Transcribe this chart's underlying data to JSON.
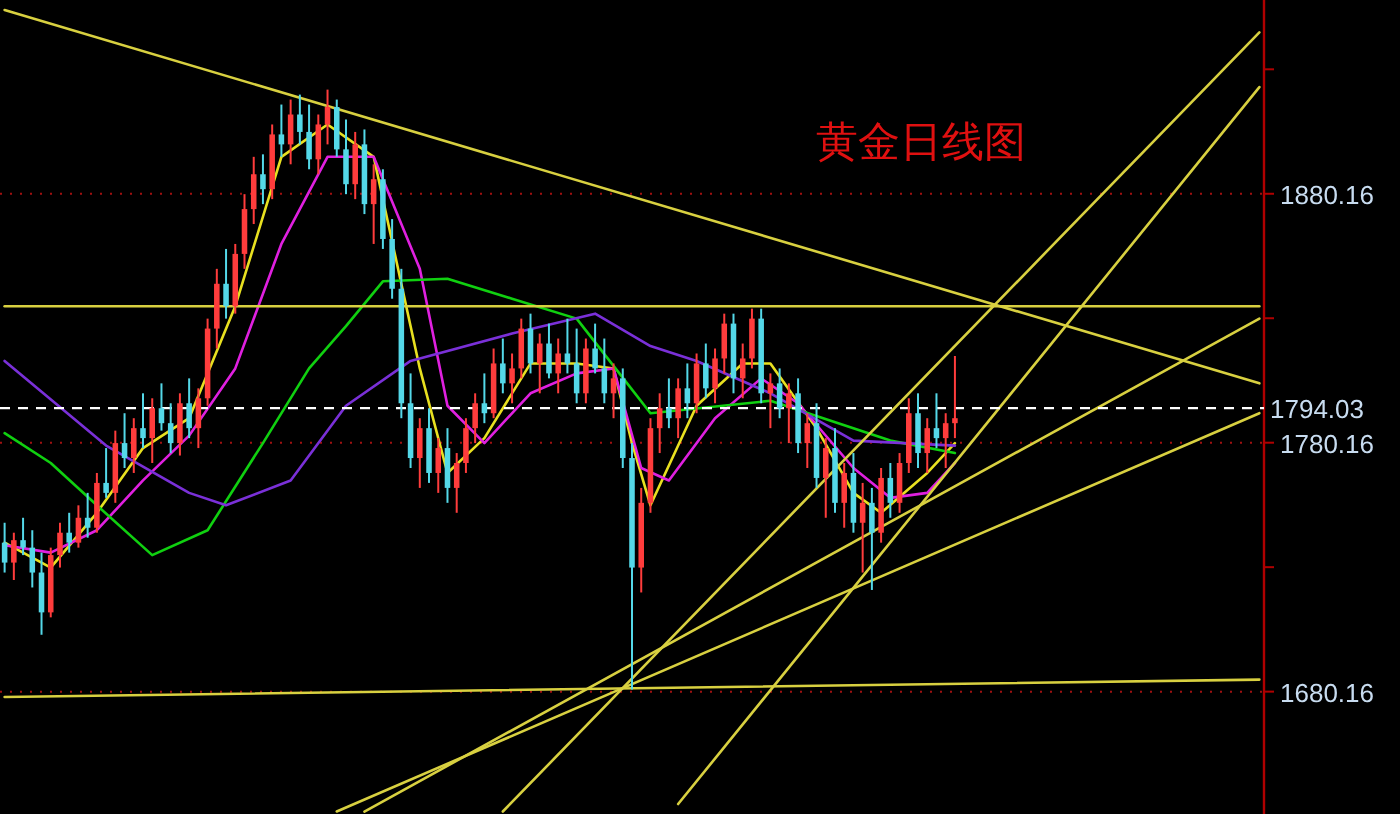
{
  "chart_data": {
    "type": "candlestick",
    "title": "黄金日线图",
    "categories": [
      null,
      null,
      null,
      null,
      null,
      null,
      null,
      null,
      null,
      null,
      null,
      null,
      null,
      null,
      null,
      null,
      null,
      null,
      null,
      null,
      null,
      null,
      null,
      null,
      null,
      null,
      null,
      null,
      null,
      null,
      null,
      null,
      null,
      null,
      null,
      null,
      null,
      null,
      null,
      null,
      null,
      null,
      null,
      null,
      null,
      null,
      null,
      null,
      null,
      null,
      null,
      null,
      null,
      null,
      null,
      null,
      null,
      null,
      null,
      null,
      null,
      null,
      null,
      null,
      null,
      null,
      null,
      null,
      null,
      null,
      null,
      null,
      null,
      null,
      null,
      null,
      null,
      null,
      null,
      null,
      null,
      null,
      null,
      null,
      null,
      null,
      null,
      null,
      null,
      null,
      null,
      null,
      null,
      null,
      null,
      null,
      null,
      null,
      null,
      null,
      null,
      null,
      null,
      null,
      null,
      null,
      null,
      null,
      null,
      null,
      null,
      null,
      null,
      null,
      null,
      null,
      null,
      null,
      null,
      null,
      null,
      null,
      null,
      null,
      null,
      null,
      null,
      null,
      null,
      null,
      null,
      null,
      null,
      null,
      null,
      null,
      null
    ],
    "ohlc": [
      [
        1740,
        1748,
        1728,
        1732
      ],
      [
        1732,
        1744,
        1725,
        1741
      ],
      [
        1741,
        1750,
        1735,
        1738
      ],
      [
        1738,
        1745,
        1722,
        1728
      ],
      [
        1728,
        1736,
        1703,
        1712
      ],
      [
        1712,
        1738,
        1710,
        1735
      ],
      [
        1735,
        1748,
        1730,
        1744
      ],
      [
        1744,
        1752,
        1736,
        1740
      ],
      [
        1740,
        1755,
        1738,
        1750
      ],
      [
        1750,
        1760,
        1742,
        1746
      ],
      [
        1746,
        1768,
        1744,
        1764
      ],
      [
        1764,
        1778,
        1758,
        1760
      ],
      [
        1760,
        1785,
        1756,
        1780
      ],
      [
        1780,
        1792,
        1770,
        1774
      ],
      [
        1774,
        1790,
        1768,
        1786
      ],
      [
        1786,
        1800,
        1778,
        1782
      ],
      [
        1782,
        1798,
        1772,
        1794
      ],
      [
        1794,
        1804,
        1785,
        1788
      ],
      [
        1788,
        1796,
        1776,
        1780
      ],
      [
        1780,
        1800,
        1775,
        1796
      ],
      [
        1796,
        1806,
        1782,
        1786
      ],
      [
        1786,
        1802,
        1778,
        1798
      ],
      [
        1798,
        1830,
        1795,
        1826
      ],
      [
        1826,
        1850,
        1818,
        1844
      ],
      [
        1844,
        1858,
        1830,
        1835
      ],
      [
        1835,
        1860,
        1832,
        1856
      ],
      [
        1856,
        1880,
        1850,
        1874
      ],
      [
        1874,
        1895,
        1868,
        1888
      ],
      [
        1888,
        1896,
        1876,
        1882
      ],
      [
        1882,
        1908,
        1878,
        1904
      ],
      [
        1904,
        1916,
        1895,
        1900
      ],
      [
        1900,
        1918,
        1892,
        1912
      ],
      [
        1912,
        1920,
        1900,
        1905
      ],
      [
        1905,
        1916,
        1890,
        1894
      ],
      [
        1894,
        1912,
        1888,
        1908
      ],
      [
        1908,
        1922,
        1900,
        1915
      ],
      [
        1915,
        1918,
        1895,
        1898
      ],
      [
        1898,
        1910,
        1880,
        1884
      ],
      [
        1884,
        1905,
        1878,
        1900
      ],
      [
        1900,
        1906,
        1872,
        1876
      ],
      [
        1876,
        1892,
        1860,
        1886
      ],
      [
        1886,
        1890,
        1858,
        1862
      ],
      [
        1862,
        1870,
        1838,
        1842
      ],
      [
        1842,
        1850,
        1790,
        1796
      ],
      [
        1796,
        1808,
        1770,
        1774
      ],
      [
        1774,
        1790,
        1762,
        1786
      ],
      [
        1786,
        1794,
        1764,
        1768
      ],
      [
        1768,
        1782,
        1760,
        1778
      ],
      [
        1778,
        1786,
        1756,
        1762
      ],
      [
        1762,
        1776,
        1752,
        1772
      ],
      [
        1772,
        1790,
        1768,
        1786
      ],
      [
        1786,
        1800,
        1780,
        1796
      ],
      [
        1796,
        1808,
        1788,
        1792
      ],
      [
        1792,
        1818,
        1790,
        1812
      ],
      [
        1812,
        1822,
        1800,
        1804
      ],
      [
        1804,
        1816,
        1796,
        1810
      ],
      [
        1810,
        1830,
        1806,
        1826
      ],
      [
        1826,
        1832,
        1808,
        1812
      ],
      [
        1812,
        1824,
        1800,
        1820
      ],
      [
        1820,
        1828,
        1806,
        1808
      ],
      [
        1808,
        1822,
        1800,
        1816
      ],
      [
        1816,
        1830,
        1808,
        1812
      ],
      [
        1812,
        1826,
        1796,
        1800
      ],
      [
        1800,
        1822,
        1796,
        1818
      ],
      [
        1818,
        1828,
        1808,
        1810
      ],
      [
        1810,
        1822,
        1796,
        1800
      ],
      [
        1800,
        1812,
        1790,
        1806
      ],
      [
        1806,
        1810,
        1770,
        1774
      ],
      [
        1774,
        1780,
        1681,
        1730
      ],
      [
        1730,
        1762,
        1720,
        1756
      ],
      [
        1756,
        1790,
        1752,
        1786
      ],
      [
        1786,
        1800,
        1776,
        1794
      ],
      [
        1794,
        1806,
        1786,
        1790
      ],
      [
        1790,
        1806,
        1782,
        1802
      ],
      [
        1802,
        1812,
        1790,
        1796
      ],
      [
        1796,
        1816,
        1792,
        1812
      ],
      [
        1812,
        1820,
        1798,
        1802
      ],
      [
        1802,
        1818,
        1796,
        1814
      ],
      [
        1814,
        1832,
        1808,
        1828
      ],
      [
        1828,
        1832,
        1800,
        1806
      ],
      [
        1806,
        1820,
        1798,
        1814
      ],
      [
        1814,
        1834,
        1810,
        1830
      ],
      [
        1830,
        1834,
        1796,
        1800
      ],
      [
        1800,
        1808,
        1786,
        1804
      ],
      [
        1804,
        1810,
        1790,
        1794
      ],
      [
        1794,
        1804,
        1780,
        1800
      ],
      [
        1800,
        1806,
        1776,
        1780
      ],
      [
        1780,
        1792,
        1770,
        1788
      ],
      [
        1788,
        1796,
        1762,
        1766
      ],
      [
        1766,
        1782,
        1750,
        1778
      ],
      [
        1778,
        1786,
        1752,
        1756
      ],
      [
        1756,
        1772,
        1746,
        1768
      ],
      [
        1768,
        1776,
        1744,
        1748
      ],
      [
        1748,
        1764,
        1728,
        1756
      ],
      [
        1756,
        1762,
        1721,
        1744
      ],
      [
        1744,
        1770,
        1740,
        1766
      ],
      [
        1766,
        1772,
        1750,
        1756
      ],
      [
        1756,
        1776,
        1752,
        1772
      ],
      [
        1772,
        1798,
        1768,
        1792
      ],
      [
        1792,
        1800,
        1770,
        1776
      ],
      [
        1776,
        1790,
        1768,
        1786
      ],
      [
        1786,
        1800,
        1778,
        1782
      ],
      [
        1782,
        1792,
        1770,
        1788
      ],
      [
        1788,
        1815,
        1782,
        1790
      ],
      null,
      null,
      null,
      null,
      null,
      null,
      null,
      null,
      null,
      null,
      null,
      null,
      null,
      null,
      null,
      null,
      null,
      null,
      null,
      null,
      null,
      null,
      null,
      null,
      null,
      null,
      null,
      null,
      null,
      null,
      null,
      null,
      null
    ],
    "colors": [
      "#54d8e8",
      "#ff3c3c",
      "#54d8e8",
      "#54d8e8",
      "#54d8e8",
      "#ff3c3c",
      "#ff3c3c",
      "#54d8e8",
      "#ff3c3c",
      "#54d8e8",
      "#ff3c3c",
      "#54d8e8",
      "#ff3c3c",
      "#54d8e8",
      "#ff3c3c",
      "#54d8e8",
      "#ff3c3c",
      "#54d8e8",
      "#54d8e8",
      "#ff3c3c",
      "#54d8e8",
      "#ff3c3c",
      "#ff3c3c",
      "#ff3c3c",
      "#54d8e8",
      "#ff3c3c",
      "#ff3c3c",
      "#ff3c3c",
      "#54d8e8",
      "#ff3c3c",
      "#54d8e8",
      "#ff3c3c",
      "#54d8e8",
      "#54d8e8",
      "#ff3c3c",
      "#ff3c3c",
      "#54d8e8",
      "#54d8e8",
      "#ff3c3c",
      "#54d8e8",
      "#ff3c3c",
      "#54d8e8",
      "#54d8e8",
      "#54d8e8",
      "#54d8e8",
      "#ff3c3c",
      "#54d8e8",
      "#ff3c3c",
      "#54d8e8",
      "#ff3c3c",
      "#ff3c3c",
      "#ff3c3c",
      "#54d8e8",
      "#ff3c3c",
      "#54d8e8",
      "#ff3c3c",
      "#ff3c3c",
      "#54d8e8",
      "#ff3c3c",
      "#54d8e8",
      "#ff3c3c",
      "#54d8e8",
      "#54d8e8",
      "#ff3c3c",
      "#54d8e8",
      "#54d8e8",
      "#ff3c3c",
      "#54d8e8",
      "#54d8e8",
      "#ff3c3c",
      "#ff3c3c",
      "#ff3c3c",
      "#54d8e8",
      "#ff3c3c",
      "#54d8e8",
      "#ff3c3c",
      "#54d8e8",
      "#ff3c3c",
      "#ff3c3c",
      "#54d8e8",
      "#ff3c3c",
      "#ff3c3c",
      "#54d8e8",
      "#ff3c3c",
      "#54d8e8",
      "#ff3c3c",
      "#54d8e8",
      "#ff3c3c",
      "#54d8e8",
      "#ff3c3c",
      "#54d8e8",
      "#ff3c3c",
      "#54d8e8",
      "#ff3c3c",
      "#54d8e8",
      "#ff3c3c",
      "#54d8e8",
      "#ff3c3c",
      "#ff3c3c",
      "#54d8e8",
      "#ff3c3c",
      "#54d8e8",
      "#ff3c3c",
      "#ff3c3c",
      null,
      null,
      null,
      null,
      null,
      null,
      null,
      null,
      null,
      null,
      null,
      null,
      null,
      null,
      null,
      null,
      null,
      null,
      null,
      null,
      null,
      null,
      null,
      null,
      null,
      null,
      null,
      null,
      null,
      null,
      null,
      null,
      null
    ],
    "series": [
      {
        "type": "line",
        "color": "#e8e020",
        "values": [
          1740,
          null,
          null,
          null,
          null,
          1730,
          null,
          null,
          null,
          null,
          1752,
          null,
          null,
          null,
          null,
          1778,
          null,
          null,
          null,
          null,
          1790,
          null,
          null,
          null,
          null,
          1835,
          null,
          null,
          null,
          null,
          1895,
          null,
          null,
          null,
          null,
          1908,
          null,
          null,
          null,
          null,
          1895,
          null,
          null,
          null,
          null,
          1810,
          null,
          null,
          1768,
          null,
          null,
          null,
          1782,
          null,
          null,
          null,
          null,
          1812,
          null,
          null,
          null,
          null,
          1812,
          null,
          null,
          null,
          1810,
          null,
          1780,
          null,
          1755,
          null,
          null,
          null,
          null,
          1795,
          null,
          null,
          null,
          null,
          1812,
          null,
          null,
          1812,
          null,
          null,
          null,
          null,
          1786,
          null,
          null,
          null,
          1760,
          null,
          null,
          1752,
          null,
          null,
          null,
          null,
          1768,
          null,
          null,
          1780,
          null,
          null,
          null,
          null,
          null,
          null,
          null,
          null,
          null,
          null,
          null,
          null,
          null,
          null,
          null,
          null,
          null,
          null,
          null,
          null,
          null,
          null,
          null,
          null,
          null,
          null,
          null,
          null,
          null,
          null,
          null,
          null,
          null
        ]
      },
      {
        "type": "line",
        "color": "#e020e0",
        "values": [
          1739,
          null,
          null,
          null,
          null,
          1736,
          null,
          null,
          null,
          null,
          1745,
          null,
          null,
          null,
          null,
          1765,
          null,
          null,
          null,
          null,
          1783,
          null,
          null,
          null,
          null,
          1810,
          null,
          null,
          null,
          null,
          1860,
          null,
          null,
          null,
          null,
          1895,
          null,
          null,
          null,
          null,
          1895,
          null,
          null,
          null,
          null,
          1850,
          null,
          null,
          1795,
          null,
          null,
          null,
          1780,
          null,
          null,
          null,
          null,
          1800,
          null,
          null,
          null,
          null,
          1808,
          null,
          null,
          null,
          1810,
          null,
          null,
          1770,
          null,
          null,
          1765,
          null,
          null,
          null,
          null,
          1790,
          null,
          null,
          null,
          null,
          1806,
          null,
          null,
          null,
          1796,
          null,
          null,
          null,
          null,
          null,
          1770,
          null,
          null,
          null,
          1758,
          null,
          null,
          null,
          1760,
          null,
          null,
          1772,
          null,
          null,
          null,
          null,
          null,
          null,
          null,
          null,
          null,
          null,
          null,
          null,
          null,
          null,
          null,
          null,
          null,
          null,
          null,
          null,
          null,
          null,
          null,
          null,
          null,
          null,
          null,
          null,
          null,
          null,
          null,
          null,
          null
        ]
      },
      {
        "type": "line",
        "color": "#10d010",
        "values": [
          1784,
          null,
          null,
          null,
          null,
          1772,
          null,
          null,
          null,
          null,
          1755,
          null,
          null,
          null,
          null,
          null,
          1735,
          null,
          null,
          null,
          null,
          null,
          1745,
          null,
          null,
          null,
          null,
          null,
          1780,
          null,
          null,
          null,
          null,
          1810,
          null,
          null,
          null,
          1827,
          null,
          null,
          null,
          1845,
          null,
          null,
          null,
          null,
          null,
          null,
          1846,
          null,
          null,
          null,
          null,
          null,
          null,
          1838,
          null,
          null,
          null,
          null,
          null,
          null,
          1830,
          null,
          null,
          null,
          1811,
          null,
          null,
          null,
          1792,
          null,
          null,
          null,
          null,
          null,
          null,
          null,
          null,
          null,
          null,
          null,
          null,
          1797,
          null,
          null,
          null,
          null,
          null,
          null,
          null,
          null,
          null,
          null,
          null,
          null,
          1781,
          null,
          null,
          null,
          null,
          null,
          null,
          1776,
          null,
          null,
          null,
          null,
          null,
          null,
          null,
          null,
          null,
          null,
          null,
          null,
          null,
          null,
          null,
          null,
          null,
          null,
          null,
          null,
          null,
          null,
          null,
          null,
          null,
          null,
          null,
          null,
          null,
          null,
          null,
          null,
          null
        ]
      },
      {
        "type": "line",
        "color": "#7a30d8",
        "values": [
          1813,
          null,
          null,
          null,
          null,
          null,
          null,
          null,
          null,
          null,
          null,
          1779,
          null,
          null,
          null,
          null,
          null,
          null,
          null,
          null,
          1760,
          null,
          null,
          null,
          1755,
          null,
          null,
          null,
          null,
          null,
          null,
          1765,
          null,
          null,
          null,
          null,
          null,
          1795,
          null,
          null,
          null,
          null,
          null,
          null,
          1813,
          null,
          null,
          null,
          null,
          null,
          null,
          null,
          null,
          null,
          null,
          1824,
          null,
          null,
          null,
          null,
          null,
          null,
          null,
          null,
          1832,
          null,
          null,
          null,
          null,
          null,
          1819,
          null,
          null,
          null,
          null,
          1813,
          null,
          null,
          null,
          null,
          null,
          null,
          null,
          1800,
          null,
          null,
          null,
          null,
          null,
          null,
          null,
          null,
          1781,
          null,
          null,
          null,
          null,
          null,
          null,
          null,
          null,
          null,
          null,
          1779,
          null,
          null,
          null,
          null,
          null,
          null,
          null,
          null,
          null,
          null,
          null,
          null,
          null,
          null,
          null,
          null,
          null,
          null,
          null,
          null,
          null,
          null,
          null,
          null,
          null,
          null,
          null,
          null,
          null,
          null,
          null,
          null,
          null
        ]
      },
      {
        "type": "line",
        "color": "#d8d040",
        "values": [
          1954,
          null,
          null,
          null,
          null,
          null,
          null,
          null,
          null,
          null,
          null,
          null,
          null,
          null,
          null,
          null,
          null,
          null,
          null,
          null,
          null,
          null,
          null,
          null,
          null,
          null,
          null,
          null,
          null,
          null,
          null,
          null,
          null,
          null,
          null,
          null,
          null,
          null,
          null,
          null,
          null,
          null,
          null,
          null,
          null,
          null,
          null,
          null,
          null,
          null,
          null,
          null,
          null,
          null,
          null,
          null,
          null,
          null,
          null,
          null,
          null,
          null,
          null,
          null,
          null,
          null,
          null,
          null,
          null,
          null,
          null,
          null,
          null,
          null,
          null,
          null,
          null,
          null,
          null,
          null,
          null,
          null,
          null,
          null,
          null,
          null,
          null,
          null,
          null,
          null,
          null,
          null,
          null,
          null,
          null,
          null,
          null,
          null,
          null,
          null,
          null,
          null,
          null,
          null,
          null,
          null,
          null,
          null,
          null,
          null,
          null,
          null,
          null,
          null,
          null,
          null,
          null,
          null,
          null,
          null,
          null,
          null,
          null,
          null,
          null,
          null,
          null,
          null,
          null,
          null,
          null,
          null,
          null,
          null,
          null,
          null,
          1804
        ]
      },
      {
        "type": "line",
        "color": "#d8d040",
        "values": [
          1835,
          null,
          null,
          null,
          null,
          null,
          null,
          null,
          null,
          null,
          null,
          null,
          null,
          null,
          null,
          null,
          null,
          null,
          null,
          null,
          null,
          null,
          null,
          null,
          null,
          null,
          null,
          null,
          null,
          null,
          null,
          null,
          null,
          null,
          null,
          null,
          null,
          null,
          null,
          null,
          null,
          null,
          null,
          null,
          null,
          null,
          null,
          null,
          null,
          null,
          null,
          null,
          null,
          null,
          null,
          null,
          null,
          null,
          null,
          null,
          null,
          null,
          null,
          null,
          null,
          null,
          null,
          null,
          null,
          null,
          null,
          null,
          null,
          null,
          null,
          null,
          null,
          null,
          null,
          null,
          null,
          null,
          null,
          null,
          null,
          null,
          null,
          null,
          null,
          null,
          null,
          null,
          null,
          null,
          null,
          null,
          null,
          null,
          null,
          null,
          null,
          null,
          null,
          null,
          null,
          null,
          null,
          null,
          null,
          null,
          null,
          null,
          null,
          null,
          null,
          null,
          null,
          null,
          null,
          null,
          null,
          null,
          null,
          null,
          null,
          null,
          null,
          null,
          null,
          null,
          null,
          null,
          null,
          null,
          null,
          null,
          1835
        ]
      },
      {
        "type": "line",
        "color": "#d8d040",
        "values": [
          1678,
          null,
          null,
          null,
          null,
          null,
          null,
          null,
          null,
          null,
          null,
          null,
          null,
          null,
          null,
          null,
          null,
          null,
          null,
          null,
          null,
          null,
          null,
          null,
          null,
          null,
          null,
          null,
          null,
          null,
          null,
          null,
          null,
          null,
          null,
          null,
          null,
          null,
          null,
          null,
          null,
          null,
          null,
          null,
          null,
          null,
          null,
          null,
          null,
          null,
          null,
          null,
          null,
          null,
          null,
          null,
          null,
          null,
          null,
          null,
          null,
          null,
          null,
          null,
          null,
          null,
          null,
          null,
          null,
          null,
          null,
          null,
          null,
          null,
          null,
          null,
          null,
          null,
          null,
          null,
          null,
          null,
          null,
          null,
          null,
          null,
          null,
          null,
          null,
          null,
          null,
          null,
          null,
          null,
          null,
          null,
          null,
          null,
          null,
          null,
          null,
          null,
          null,
          null,
          null,
          null,
          null,
          null,
          null,
          null,
          null,
          null,
          null,
          null,
          null,
          null,
          null,
          null,
          null,
          null,
          null,
          null,
          null,
          null,
          null,
          null,
          null,
          null,
          null,
          null,
          null,
          null,
          null,
          null,
          null,
          null,
          1685
        ]
      },
      {
        "type": "line",
        "color": "#d8d040",
        "values": [
          null,
          null,
          null,
          null,
          null,
          null,
          null,
          null,
          null,
          null,
          null,
          null,
          null,
          null,
          null,
          null,
          null,
          null,
          null,
          null,
          null,
          null,
          null,
          null,
          null,
          null,
          null,
          null,
          null,
          null,
          null,
          null,
          null,
          null,
          null,
          null,
          null,
          null,
          null,
          null,
          null,
          null,
          null,
          null,
          null,
          null,
          null,
          null,
          null,
          null,
          null,
          null,
          null,
          null,
          1632,
          null,
          null,
          null,
          null,
          null,
          null,
          null,
          null,
          null,
          null,
          null,
          null,
          null,
          null,
          null,
          null,
          null,
          null,
          null,
          null,
          null,
          null,
          null,
          null,
          null,
          null,
          null,
          null,
          null,
          null,
          null,
          null,
          null,
          null,
          null,
          null,
          null,
          null,
          null,
          null,
          null,
          null,
          null,
          null,
          null,
          null,
          null,
          null,
          null,
          null,
          null,
          null,
          null,
          null,
          null,
          null,
          null,
          null,
          null,
          null,
          null,
          null,
          null,
          null,
          null,
          null,
          null,
          null,
          null,
          null,
          null,
          null,
          null,
          null,
          null,
          null,
          null,
          null,
          null,
          null,
          null,
          1945
        ]
      },
      {
        "type": "line",
        "color": "#d8d040",
        "values": [
          null,
          null,
          null,
          null,
          null,
          null,
          null,
          null,
          null,
          null,
          null,
          null,
          null,
          null,
          null,
          null,
          null,
          null,
          null,
          null,
          null,
          null,
          null,
          null,
          null,
          null,
          null,
          null,
          null,
          null,
          null,
          null,
          null,
          null,
          null,
          null,
          null,
          null,
          null,
          null,
          null,
          null,
          null,
          null,
          null,
          null,
          null,
          null,
          null,
          null,
          null,
          null,
          null,
          null,
          null,
          null,
          null,
          null,
          null,
          null,
          null,
          null,
          null,
          null,
          null,
          null,
          null,
          null,
          null,
          null,
          null,
          null,
          null,
          1635,
          null,
          null,
          null,
          null,
          null,
          null,
          null,
          null,
          null,
          null,
          null,
          null,
          null,
          null,
          null,
          null,
          null,
          null,
          null,
          null,
          null,
          null,
          null,
          null,
          null,
          null,
          null,
          null,
          null,
          null,
          null,
          null,
          null,
          null,
          null,
          null,
          null,
          null,
          null,
          null,
          null,
          null,
          null,
          null,
          null,
          null,
          null,
          null,
          null,
          null,
          null,
          null,
          null,
          null,
          null,
          null,
          null,
          null,
          null,
          null,
          null,
          null,
          1923
        ]
      },
      {
        "type": "line",
        "color": "#d8d040",
        "values": [
          null,
          null,
          null,
          null,
          null,
          null,
          null,
          null,
          null,
          null,
          null,
          null,
          null,
          null,
          null,
          null,
          null,
          null,
          null,
          null,
          null,
          null,
          null,
          null,
          null,
          null,
          null,
          null,
          null,
          null,
          null,
          null,
          null,
          null,
          null,
          null,
          null,
          null,
          null,
          1632,
          null,
          null,
          null,
          null,
          null,
          null,
          null,
          null,
          null,
          null,
          null,
          null,
          null,
          null,
          null,
          null,
          null,
          null,
          null,
          null,
          null,
          null,
          null,
          null,
          null,
          null,
          null,
          null,
          null,
          null,
          null,
          null,
          null,
          null,
          null,
          null,
          null,
          null,
          null,
          null,
          null,
          null,
          null,
          null,
          null,
          null,
          null,
          null,
          null,
          null,
          null,
          null,
          null,
          null,
          null,
          null,
          null,
          null,
          null,
          null,
          null,
          null,
          null,
          null,
          null,
          null,
          null,
          null,
          null,
          null,
          null,
          null,
          null,
          null,
          null,
          null,
          null,
          null,
          null,
          null,
          null,
          null,
          null,
          null,
          null,
          null,
          null,
          null,
          null,
          null,
          null,
          null,
          null,
          null,
          null,
          null,
          1830
        ]
      },
      {
        "type": "line",
        "color": "#d8d040",
        "values": [
          null,
          null,
          null,
          null,
          null,
          null,
          null,
          null,
          null,
          null,
          null,
          null,
          null,
          null,
          null,
          null,
          null,
          null,
          null,
          null,
          null,
          null,
          null,
          null,
          null,
          null,
          null,
          null,
          null,
          null,
          null,
          null,
          null,
          null,
          null,
          null,
          1632,
          null,
          null,
          null,
          null,
          null,
          null,
          null,
          null,
          null,
          null,
          null,
          null,
          null,
          null,
          null,
          null,
          null,
          null,
          null,
          null,
          null,
          null,
          null,
          null,
          null,
          null,
          null,
          null,
          null,
          null,
          null,
          null,
          null,
          null,
          null,
          null,
          null,
          null,
          null,
          null,
          null,
          null,
          null,
          null,
          null,
          null,
          null,
          null,
          null,
          null,
          null,
          null,
          null,
          null,
          null,
          null,
          null,
          null,
          null,
          null,
          null,
          null,
          null,
          null,
          null,
          null,
          null,
          null,
          null,
          null,
          null,
          null,
          null,
          null,
          null,
          null,
          null,
          null,
          null,
          null,
          null,
          null,
          null,
          null,
          null,
          null,
          null,
          null,
          null,
          null,
          null,
          null,
          null,
          null,
          null,
          null,
          null,
          null,
          null,
          1792
        ]
      }
    ],
    "ylim": [
      1631,
      1958
    ],
    "yticks": [
      {
        "value": 1930.16,
        "label": null
      },
      1880.16,
      {
        "value": 1830.16,
        "label": null
      },
      1780.16,
      {
        "value": 1730.16,
        "label": null
      },
      1680.16
    ],
    "ref_lines": [
      {
        "axis": "y",
        "value": 1794.03,
        "label": "1794.03",
        "color": "#ffffff",
        "line_style": "dashed"
      }
    ],
    "grid": "y",
    "tick_labels": "y"
  }
}
